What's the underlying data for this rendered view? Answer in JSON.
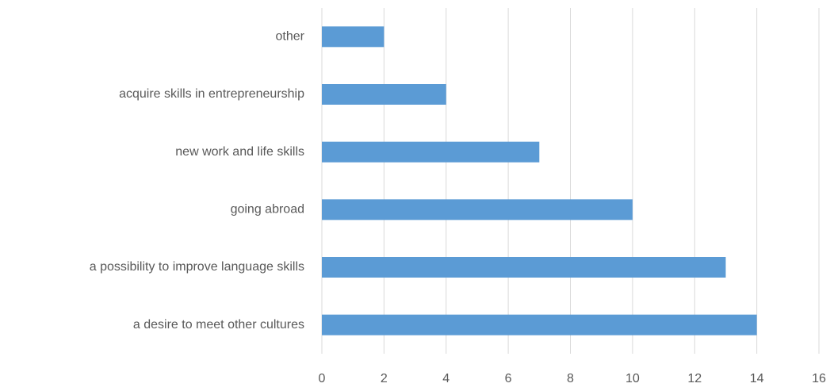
{
  "chart_data": {
    "type": "barh",
    "categories": [
      "other",
      "acquire skills in entrepreneurship",
      "new work and life skills",
      "going abroad",
      "a possibility to improve language skills",
      "a desire to meet other cultures"
    ],
    "values": [
      2,
      4,
      7,
      10,
      13,
      14
    ],
    "color": "#5b9bd5",
    "xlim": [
      0,
      16
    ],
    "xticks": [
      0,
      2,
      4,
      6,
      8,
      10,
      12,
      14,
      16
    ],
    "grid": true
  }
}
